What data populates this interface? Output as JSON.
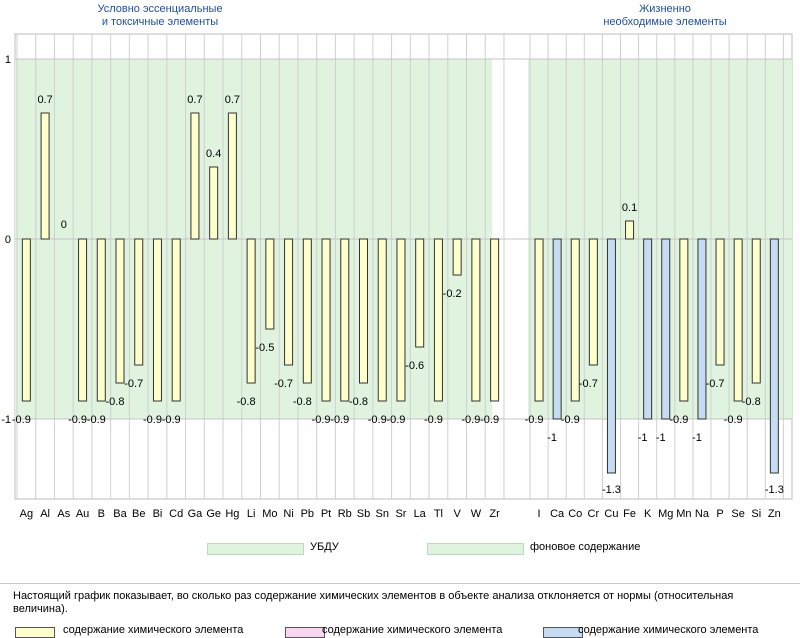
{
  "chart_data": {
    "type": "bar",
    "title": "",
    "xlabel": "",
    "ylabel": "",
    "ylim": [
      -1.45,
      1.1
    ],
    "yticks": [
      "1",
      "0",
      "-1"
    ],
    "groups": [
      {
        "name": "Условно эссенциальные и токсичные элементы",
        "title_lines": [
          "Условно эссенциальные",
          "и токсичные элементы"
        ],
        "categories": [
          "Ag",
          "Al",
          "As",
          "Au",
          "B",
          "Ba",
          "Be",
          "Bi",
          "Cd",
          "Ga",
          "Ge",
          "Hg",
          "Li",
          "Mo",
          "Ni",
          "Pb",
          "Pt",
          "Rb",
          "Sb",
          "Sn",
          "Sr",
          "La",
          "Tl",
          "V",
          "W",
          "Zr"
        ],
        "values": [
          -0.9,
          0.7,
          0,
          -0.9,
          -0.9,
          -0.8,
          -0.7,
          -0.9,
          -0.9,
          0.7,
          0.4,
          0.7,
          -0.8,
          -0.5,
          -0.7,
          -0.8,
          -0.9,
          -0.9,
          -0.8,
          -0.9,
          -0.9,
          -0.6,
          -0.9,
          -0.2,
          -0.9,
          -0.9
        ],
        "labels": [
          "-0.9",
          "0.7",
          "0",
          "-0.9",
          "-0.9",
          "-0.8",
          "-0.7",
          "-0.9",
          "-0.9",
          "0.7",
          "0.4",
          "0.7",
          "-0.8",
          "-0.5",
          "-0.7",
          "-0.8",
          "-0.9",
          "-0.9",
          "-0.8",
          "-0.9",
          "-0.9",
          "-0.6",
          "-0.9",
          "-0.2",
          "-0.9",
          "-0.9"
        ],
        "bar_colors": [
          "yellow",
          "yellow",
          "yellow",
          "yellow",
          "yellow",
          "yellow",
          "yellow",
          "yellow",
          "yellow",
          "yellow",
          "yellow",
          "yellow",
          "yellow",
          "yellow",
          "yellow",
          "yellow",
          "yellow",
          "yellow",
          "yellow",
          "yellow",
          "yellow",
          "yellow",
          "yellow",
          "yellow",
          "yellow",
          "yellow"
        ]
      },
      {
        "name": "Жизненно необходимые элементы",
        "title_lines": [
          "Жизненно",
          "необходимые элементы"
        ],
        "categories": [
          "I",
          "Ca",
          "Co",
          "Cr",
          "Cu",
          "Fe",
          "K",
          "Mg",
          "Mn",
          "Na",
          "P",
          "Se",
          "Si",
          "Zn"
        ],
        "values": [
          -0.9,
          -1,
          -0.9,
          -0.7,
          -1.3,
          0.1,
          -1,
          -1,
          -0.9,
          -1,
          -0.7,
          -0.9,
          -0.8,
          -1.3
        ],
        "labels": [
          "-0.9",
          "-1",
          "-0.9",
          "-0.7",
          "-1.3",
          "0.1",
          "-1",
          "-1",
          "-0.9",
          "-1",
          "-0.7",
          "-0.9",
          "-0.8",
          "-1.3"
        ],
        "bar_colors": [
          "yellow",
          "blue",
          "yellow",
          "yellow",
          "blue",
          "yellow",
          "blue",
          "blue",
          "yellow",
          "blue",
          "yellow",
          "yellow",
          "yellow",
          "blue"
        ]
      }
    ],
    "band": {
      "from": -1,
      "to": 1
    },
    "colors": {
      "yellow": "#ffffcc",
      "blue": "#c6dcf2",
      "pink": "#f7d6ef",
      "band": "#dff3df",
      "group_title": "#1f4fa3",
      "bar_stroke": "#333333"
    }
  },
  "legend": {
    "ubdu_label": "УБДУ",
    "background_label": "фоновое содержание"
  },
  "note": {
    "text": "Настоящий график показывает, во сколько раз содержание химических элементов в объекте анализа отклоняется от нормы (относительная величина).",
    "items": [
      "содержание химического элемента",
      "содержание химического элемента",
      "содержание химического элемента"
    ]
  }
}
